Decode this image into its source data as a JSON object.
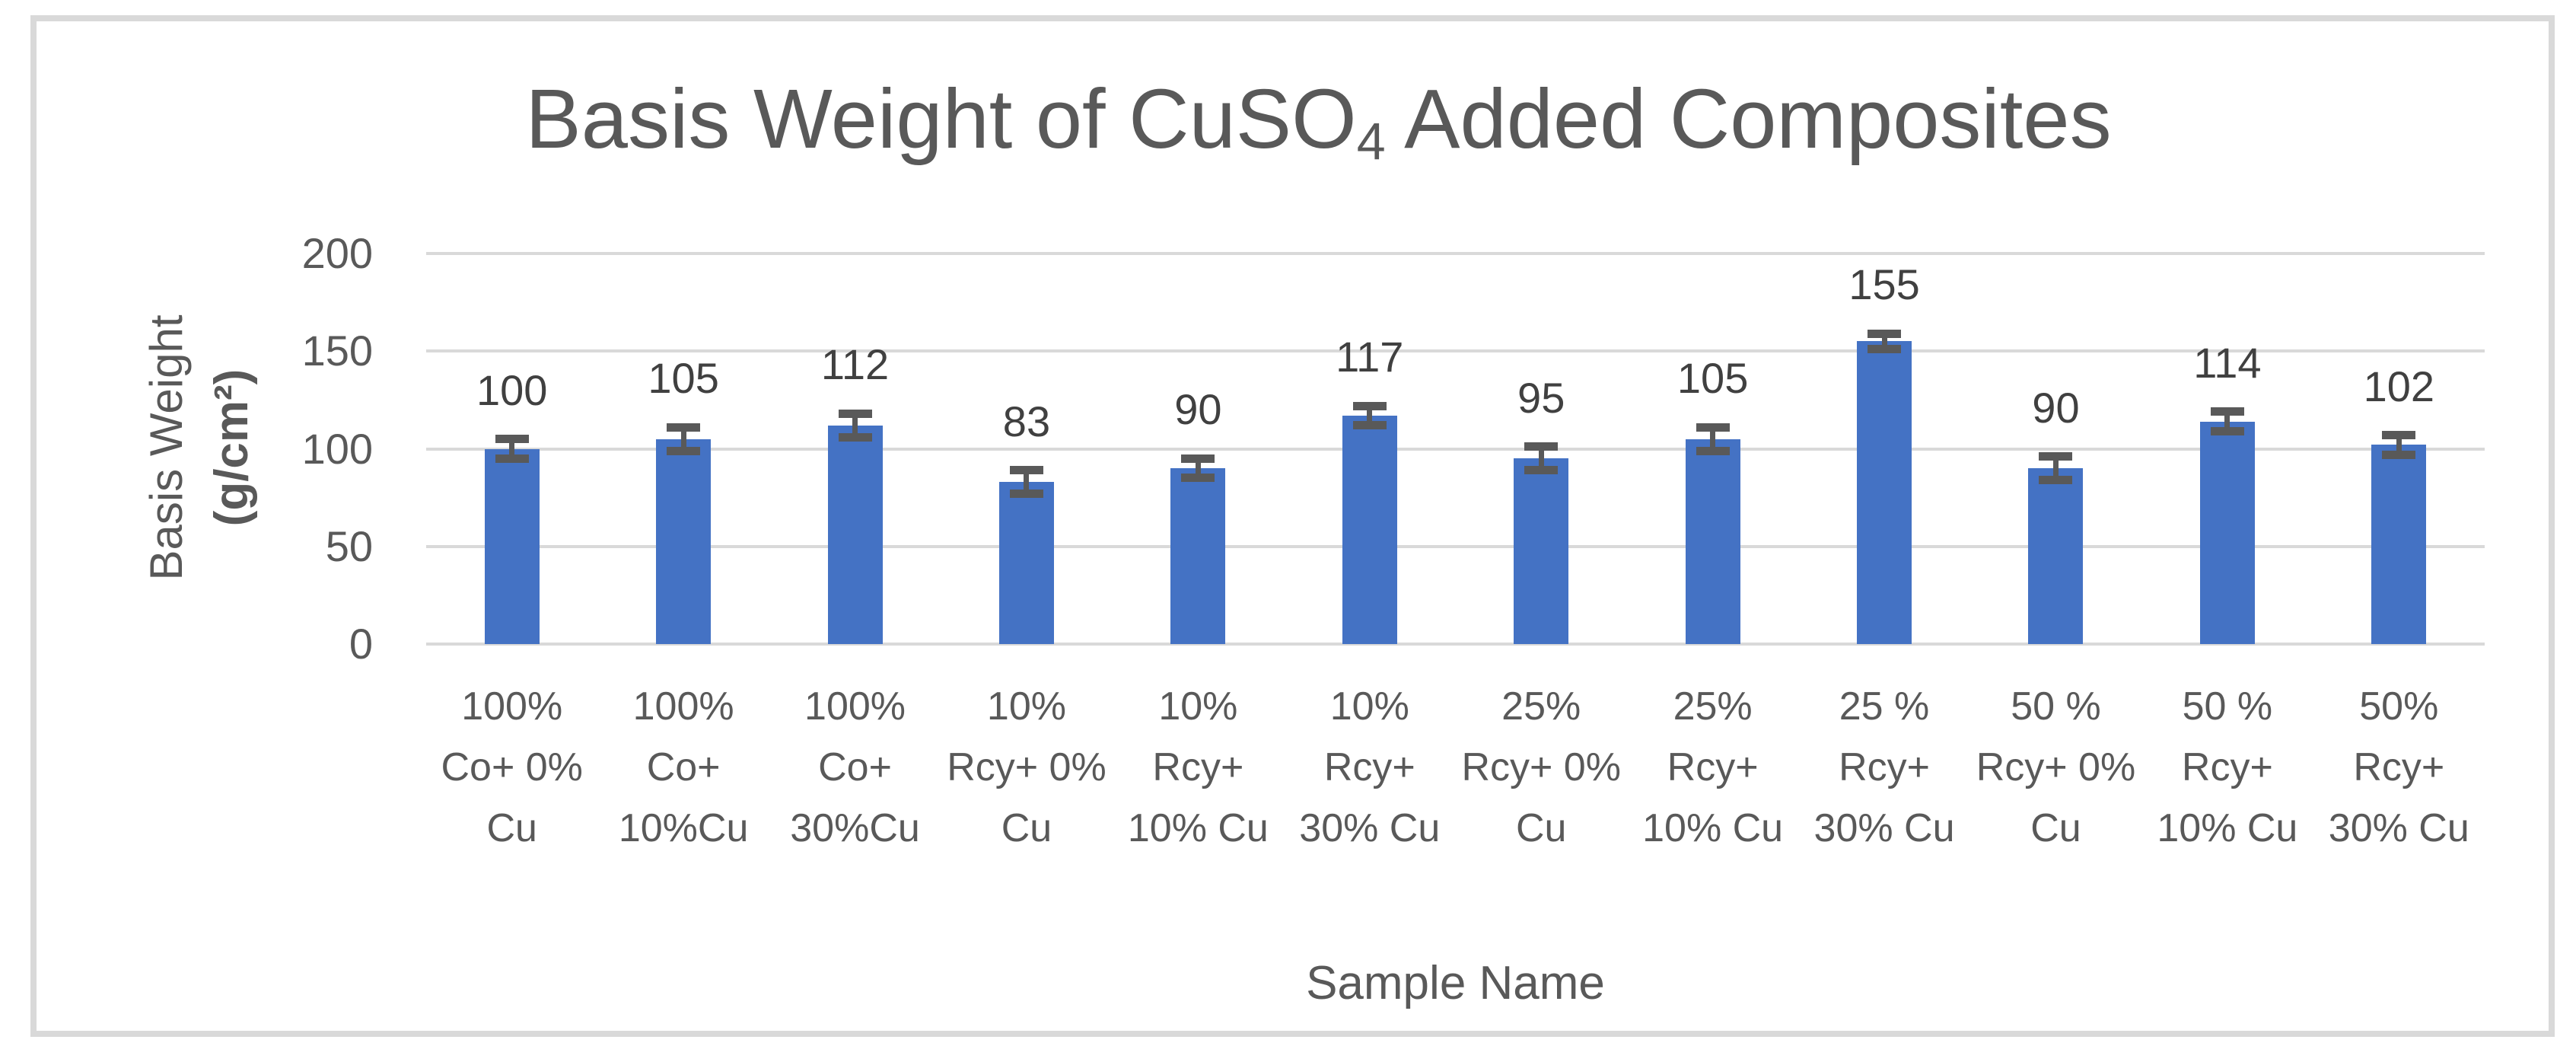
{
  "chart_data": {
    "type": "bar",
    "title_parts": {
      "pre": "Basis Weight of CuSO",
      "sub": "4",
      "post": " Added Composites"
    },
    "title_plain": "Basis Weight of CuSO4 Added Composites",
    "xlabel": "Sample Name",
    "ylabel_line1": "Basis Weight",
    "ylabel_line2": "(g/cm²)",
    "categories": [
      "100% Co+ 0% Cu",
      "100% Co+ 10%Cu",
      "100% Co+ 30%Cu",
      "10% Rcy+ 0% Cu",
      "10% Rcy+ 10% Cu",
      "10% Rcy+ 30% Cu",
      "25% Rcy+ 0% Cu",
      "25% Rcy+ 10% Cu",
      "25 % Rcy+ 30% Cu",
      "50 % Rcy+ 0% Cu",
      "50 % Rcy+ 10% Cu",
      "50% Rcy+ 30% Cu"
    ],
    "category_lines": [
      [
        "100%",
        "Co+ 0%",
        "Cu"
      ],
      [
        "100%",
        "Co+",
        "10%Cu"
      ],
      [
        "100%",
        "Co+",
        "30%Cu"
      ],
      [
        "10%",
        "Rcy+ 0%",
        "Cu"
      ],
      [
        "10%",
        "Rcy+",
        "10% Cu"
      ],
      [
        "10%",
        "Rcy+",
        "30% Cu"
      ],
      [
        "25%",
        "Rcy+ 0%",
        "Cu"
      ],
      [
        "25%",
        "Rcy+",
        "10% Cu"
      ],
      [
        "25 %",
        "Rcy+",
        "30% Cu"
      ],
      [
        "50 %",
        "Rcy+ 0%",
        "Cu"
      ],
      [
        "50 %",
        "Rcy+",
        "10% Cu"
      ],
      [
        "50%",
        "Rcy+",
        "30% Cu"
      ]
    ],
    "values": [
      100,
      105,
      112,
      83,
      90,
      117,
      95,
      105,
      155,
      90,
      114,
      102
    ],
    "errors": [
      5,
      6,
      6,
      6,
      5,
      5,
      6,
      6,
      4,
      6,
      5,
      5
    ],
    "yticks": [
      0,
      50,
      100,
      150,
      200
    ],
    "ylim": [
      0,
      200
    ],
    "grid": true,
    "legend": false,
    "bar_color": "#4472C4",
    "error_color": "#595959",
    "data_label_color": "#404040",
    "axis_text_color": "#595959",
    "gridline_color": "#D9D9D9",
    "frame_color": "#D9D9D9"
  }
}
